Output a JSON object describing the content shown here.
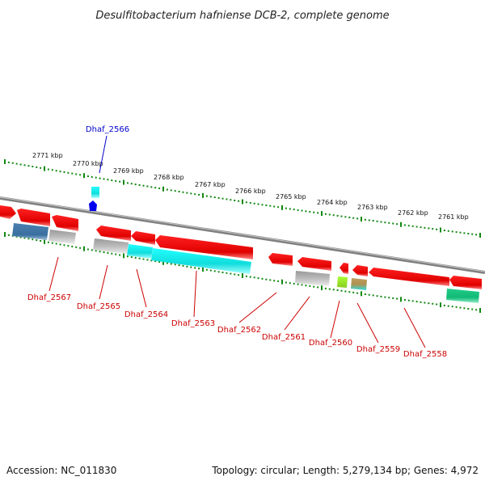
{
  "title": "Desulfitobacterium hafniense DCB-2, complete genome",
  "footer": {
    "accession": "Accession: NC_011830",
    "topology": "Topology: circular; Length: 5,279,134 bp; Genes: 4,972"
  },
  "colors": {
    "forward_gene": "#ee1111",
    "reverse_gene": "#ee1111",
    "backbone": "#808080",
    "tick": "#118811",
    "label_red": "#cc0000",
    "label_blue": "#0000cc",
    "cds_blue": "#4682b4",
    "cds_gray": "#b0b0b0",
    "cds_cyan": "#22dddd",
    "cds_green": "#22cc88",
    "cds_lime": "#99ee33",
    "cds_tan": "#b8a060"
  },
  "scale_labels": [
    "2771 kbp",
    "2770 kbp",
    "2769 kbp",
    "2768 kbp",
    "2767 kbp",
    "2766 kbp",
    "2765 kbp",
    "2764 kbp",
    "2763 kbp",
    "2762 kbp",
    "2761 kbp"
  ],
  "gene_labels": [
    {
      "name": "Dhaf_2566",
      "color": "blue"
    },
    {
      "name": "Dhaf_2567",
      "color": "red"
    },
    {
      "name": "Dhaf_2565",
      "color": "red"
    },
    {
      "name": "Dhaf_2564",
      "color": "red"
    },
    {
      "name": "Dhaf_2563",
      "color": "red"
    },
    {
      "name": "Dhaf_2562",
      "color": "red"
    },
    {
      "name": "Dhaf_2561",
      "color": "red"
    },
    {
      "name": "Dhaf_2560",
      "color": "red"
    },
    {
      "name": "Dhaf_2559",
      "color": "red"
    },
    {
      "name": "Dhaf_2558",
      "color": "red"
    }
  ]
}
